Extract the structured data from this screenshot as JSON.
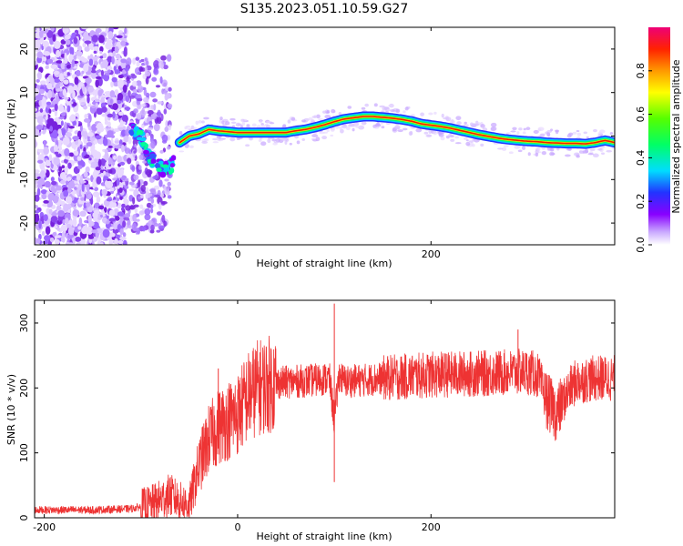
{
  "title": "S135.2023.051.10.59.G27",
  "chart_data": [
    {
      "type": "heatmap",
      "xlabel": "Height of straight line (km)",
      "ylabel": "Frequency (Hz)",
      "xlim": [
        -210,
        390
      ],
      "ylim": [
        -25,
        25
      ],
      "x_ticks": [
        -200,
        0,
        200
      ],
      "y_ticks": [
        -20,
        -10,
        0,
        10,
        20
      ],
      "colorbar": {
        "label": "Normalized spectral amplitude",
        "range": [
          0,
          1
        ],
        "ticks": [
          0.0,
          0.2,
          0.4,
          0.6,
          0.8
        ],
        "tick_labels": [
          "0.0",
          "0.2",
          "0.4",
          "0.6",
          "0.8"
        ]
      },
      "ridge_frequency": {
        "x": [
          -60,
          -50,
          -40,
          -30,
          -20,
          -10,
          0,
          10,
          20,
          30,
          40,
          50,
          60,
          70,
          80,
          90,
          100,
          110,
          120,
          130,
          140,
          150,
          160,
          170,
          180,
          190,
          200,
          210,
          220,
          230,
          240,
          250,
          260,
          270,
          280,
          290,
          300,
          310,
          320,
          330,
          340,
          350,
          360,
          370,
          380,
          390
        ],
        "y": [
          -1.5,
          0,
          0.5,
          1.5,
          1.2,
          1,
          0.8,
          0.8,
          0.8,
          0.8,
          0.8,
          0.8,
          1.2,
          1.5,
          2,
          2.6,
          3.3,
          3.9,
          4.2,
          4.5,
          4.5,
          4.3,
          4.1,
          3.8,
          3.4,
          2.8,
          2.5,
          2.2,
          1.8,
          1.3,
          0.8,
          0.3,
          -0.1,
          -0.5,
          -0.8,
          -1,
          -1.2,
          -1.3,
          -1.5,
          -1.6,
          -1.7,
          -1.7,
          -1.8,
          -1.5,
          -1.0,
          -1.5
        ]
      },
      "low_altitude_track": {
        "x": [
          -110,
          -100,
          -95,
          -90,
          -85,
          -80,
          -75,
          -70,
          -65
        ],
        "y": [
          2,
          0,
          -3,
          -5,
          -6,
          -7,
          -8,
          -7,
          -6
        ]
      }
    },
    {
      "type": "line",
      "xlabel": "Height of straight line (km)",
      "ylabel": "SNR (10 * v/v)",
      "xlim": [
        -210,
        390
      ],
      "ylim": [
        0,
        335
      ],
      "x_ticks": [
        -200,
        0,
        200
      ],
      "y_ticks": [
        0,
        100,
        200,
        300
      ],
      "line_color": "#ee3333",
      "profile": {
        "x": [
          -210,
          -150,
          -110,
          -90,
          -70,
          -60,
          -50,
          -40,
          -30,
          -20,
          -10,
          0,
          10,
          20,
          30,
          40,
          60,
          80,
          95,
          100,
          105,
          110,
          130,
          150,
          200,
          250,
          300,
          310,
          320,
          330,
          340,
          350,
          370,
          390
        ],
        "y": [
          12,
          12,
          14,
          20,
          35,
          25,
          20,
          80,
          120,
          140,
          150,
          160,
          185,
          200,
          205,
          208,
          210,
          212,
          215,
          150,
          220,
          210,
          212,
          215,
          220,
          222,
          225,
          220,
          180,
          160,
          190,
          210,
          215,
          215
        ]
      },
      "spikes": [
        {
          "x": -20,
          "y": 230
        },
        {
          "x": 100,
          "y": 330
        },
        {
          "x": 100,
          "y": 55
        },
        {
          "x": 290,
          "y": 290
        }
      ]
    }
  ]
}
